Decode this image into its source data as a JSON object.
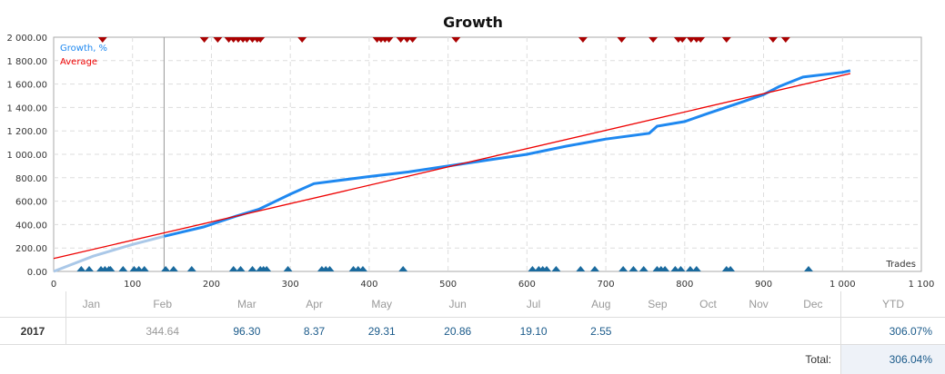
{
  "chart_data": {
    "type": "line",
    "title": "Growth",
    "xlabel": "Trades",
    "xlim": [
      0,
      1100
    ],
    "ylim": [
      0,
      2000
    ],
    "x_ticks": [
      "0",
      "100",
      "200",
      "300",
      "400",
      "500",
      "600",
      "700",
      "800",
      "900",
      "1 000",
      "1 100"
    ],
    "y_ticks": [
      "0.00",
      "200.00",
      "400.00",
      "600.00",
      "800.00",
      "1 000.00",
      "1 200.00",
      "1 400.00",
      "1 600.00",
      "1 800.00",
      "2 000.00"
    ],
    "grid": true,
    "legend_placement": "top-left",
    "series": [
      {
        "name": "Growth, %",
        "color": "#1e88f0",
        "history_color": "#aac8e8",
        "history_end_x": 140,
        "points": [
          [
            0,
            0
          ],
          [
            50,
            130
          ],
          [
            100,
            230
          ],
          [
            140,
            300
          ],
          [
            190,
            380
          ],
          [
            230,
            470
          ],
          [
            260,
            530
          ],
          [
            300,
            660
          ],
          [
            330,
            750
          ],
          [
            400,
            810
          ],
          [
            450,
            850
          ],
          [
            500,
            900
          ],
          [
            550,
            950
          ],
          [
            600,
            1000
          ],
          [
            650,
            1070
          ],
          [
            700,
            1130
          ],
          [
            755,
            1180
          ],
          [
            765,
            1240
          ],
          [
            800,
            1280
          ],
          [
            830,
            1350
          ],
          [
            870,
            1440
          ],
          [
            900,
            1510
          ],
          [
            920,
            1580
          ],
          [
            950,
            1660
          ],
          [
            1000,
            1700
          ],
          [
            1010,
            1715
          ]
        ]
      },
      {
        "name": "Average",
        "color": "#ee0000",
        "points": [
          [
            0,
            110
          ],
          [
            1010,
            1690
          ]
        ]
      }
    ],
    "divider_x": 140,
    "loss_markers_color": "#aa0000",
    "loss_markers_x": [
      62,
      191,
      208,
      222,
      228,
      234,
      240,
      245,
      252,
      258,
      262,
      315,
      410,
      415,
      420,
      425,
      440,
      448,
      455,
      510,
      671,
      720,
      760,
      792,
      797,
      808,
      815,
      820,
      853,
      912,
      928
    ],
    "profit_markers_color": "#1a6a9e",
    "profit_markers_x": [
      35,
      45,
      60,
      65,
      70,
      72,
      88,
      102,
      108,
      115,
      142,
      152,
      175,
      228,
      237,
      252,
      262,
      266,
      270,
      297,
      340,
      345,
      350,
      380,
      386,
      392,
      443,
      607,
      615,
      620,
      625,
      637,
      668,
      686,
      722,
      735,
      748,
      765,
      770,
      775,
      788,
      795,
      807,
      815,
      853,
      858,
      957
    ]
  },
  "table": {
    "months": [
      "Jan",
      "Feb",
      "Mar",
      "Apr",
      "May",
      "Jun",
      "Jul",
      "Aug",
      "Sep",
      "Oct",
      "Nov",
      "Dec"
    ],
    "ytd_header": "YTD",
    "rows": [
      {
        "year": "2017",
        "values": [
          "",
          "344.64",
          "96.30",
          "8.37",
          "29.31",
          "20.86",
          "19.10",
          "2.55",
          "",
          "",
          "",
          ""
        ],
        "ytd": "306.07%"
      }
    ],
    "total_label": "Total:",
    "total_value": "306.04%"
  }
}
